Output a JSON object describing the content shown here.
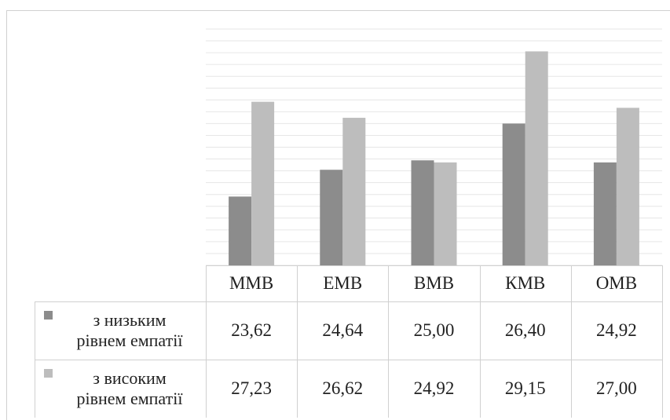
{
  "colors": {
    "low": "#8c8c8c",
    "high": "#bdbdbd",
    "grid": "#e6e6e6",
    "border": "#d0d0d0"
  },
  "chart_data": {
    "type": "bar",
    "categories": [
      "ММВ",
      "ЕМВ",
      "ВМВ",
      "КМВ",
      "ОМВ"
    ],
    "series": [
      {
        "name": "з низьким рівнем емпатії",
        "values": [
          23.62,
          24.64,
          25.0,
          26.4,
          24.92
        ]
      },
      {
        "name": "з високим рівнем емпатії",
        "values": [
          27.23,
          26.62,
          24.92,
          29.15,
          27.0
        ]
      }
    ],
    "value_labels": [
      [
        "23,62",
        "24,64",
        "25,00",
        "26,40",
        "24,92"
      ],
      [
        "27,23",
        "26,62",
        "24,92",
        "29,15",
        "27,00"
      ]
    ],
    "legend_lines": [
      [
        "з низьким",
        "рівнем емпатії"
      ],
      [
        "з високим",
        "рівнем емпатії"
      ]
    ],
    "ylim": [
      21.0,
      30.0
    ],
    "grid": true,
    "legend": "data-table"
  }
}
